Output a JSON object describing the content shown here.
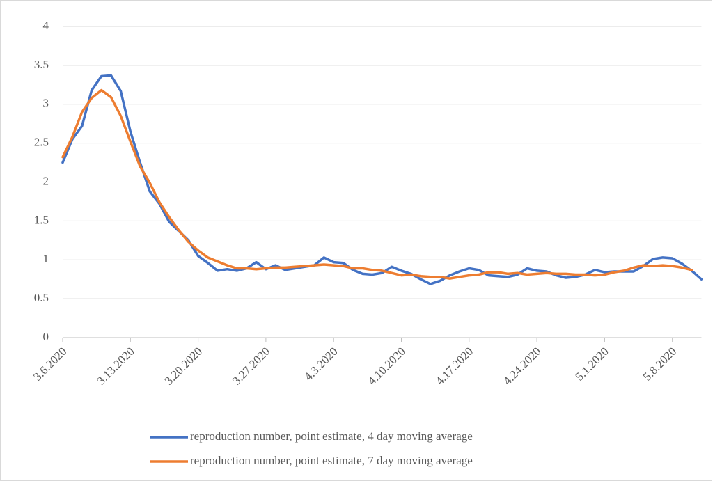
{
  "chart_data": {
    "type": "line",
    "categories": [
      "3.6.2020",
      null,
      null,
      null,
      null,
      null,
      null,
      "3.13.2020",
      null,
      null,
      null,
      null,
      null,
      null,
      "3.20.2020",
      null,
      null,
      null,
      null,
      null,
      null,
      "3.27.2020",
      null,
      null,
      null,
      null,
      null,
      null,
      "4.3.2020",
      null,
      null,
      null,
      null,
      null,
      null,
      "4.10.2020",
      null,
      null,
      null,
      null,
      null,
      null,
      "4.17.2020",
      null,
      null,
      null,
      null,
      null,
      null,
      "4.24.2020",
      null,
      null,
      null,
      null,
      null,
      null,
      "5.1.2020",
      null,
      null,
      null,
      null,
      null,
      null,
      "5.8.2020",
      null,
      null,
      null
    ],
    "series": [
      {
        "name": "reproduction number, point estimate, 4 day moving average",
        "color": "#4472c4",
        "values": [
          2.25,
          2.55,
          2.72,
          3.18,
          3.36,
          3.37,
          3.17,
          2.65,
          2.25,
          1.88,
          1.72,
          1.49,
          1.37,
          1.25,
          1.05,
          0.96,
          0.86,
          0.88,
          0.86,
          0.89,
          0.97,
          0.88,
          0.93,
          0.87,
          0.89,
          0.91,
          0.93,
          1.03,
          0.97,
          0.96,
          0.87,
          0.82,
          0.81,
          0.83,
          0.91,
          0.86,
          0.82,
          0.75,
          0.69,
          0.73,
          0.8,
          0.85,
          0.89,
          0.87,
          0.8,
          0.79,
          0.78,
          0.81,
          0.89,
          0.86,
          0.85,
          0.8,
          0.77,
          0.78,
          0.81,
          0.87,
          0.84,
          0.85,
          0.85,
          0.85,
          0.92,
          1.01,
          1.03,
          1.02,
          0.95,
          0.86,
          0.75
        ]
      },
      {
        "name": "reproduction number, point estimate, 7 day moving average",
        "color": "#ed7d31",
        "values": [
          2.32,
          2.58,
          2.9,
          3.08,
          3.18,
          3.09,
          2.85,
          2.52,
          2.2,
          1.99,
          1.74,
          1.55,
          1.38,
          1.23,
          1.12,
          1.03,
          0.98,
          0.93,
          0.89,
          0.89,
          0.88,
          0.89,
          0.9,
          0.9,
          0.91,
          0.92,
          0.93,
          0.94,
          0.93,
          0.92,
          0.89,
          0.89,
          0.87,
          0.86,
          0.83,
          0.8,
          0.81,
          0.79,
          0.78,
          0.78,
          0.76,
          0.78,
          0.8,
          0.81,
          0.84,
          0.84,
          0.82,
          0.83,
          0.81,
          0.82,
          0.83,
          0.82,
          0.82,
          0.81,
          0.81,
          0.8,
          0.81,
          0.84,
          0.86,
          0.9,
          0.93,
          0.92,
          0.93,
          0.92,
          0.9,
          0.87,
          null
        ]
      }
    ],
    "ylim": [
      0,
      4
    ],
    "yticks": [
      0,
      0.5,
      1,
      1.5,
      2,
      2.5,
      3,
      3.5,
      4
    ],
    "grid": true,
    "legend": "bottom"
  }
}
